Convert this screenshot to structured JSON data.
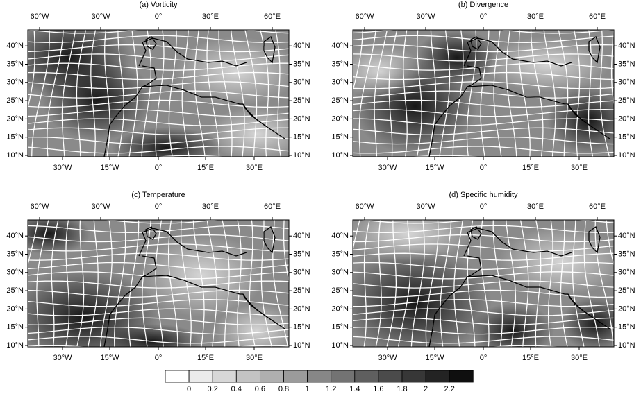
{
  "panels": [
    {
      "title": "(a) Vorticity"
    },
    {
      "title": "(b) Divergence"
    },
    {
      "title": "(c) Temperature"
    },
    {
      "title": "(d) Specific humidity"
    }
  ],
  "top_labels": [
    "60°W",
    "30°W",
    "0°",
    "30°E",
    "60°E"
  ],
  "bottom_labels": [
    "30°W",
    "15°W",
    "0°",
    "15°E",
    "30°E"
  ],
  "lat_labels": [
    "10°N",
    "15°N",
    "20°N",
    "25°N",
    "30°N",
    "35°N",
    "40°N"
  ],
  "colorbar": {
    "levels": [
      0,
      0.2,
      0.4,
      0.6,
      0.8,
      1,
      1.2,
      1.4,
      1.6,
      1.8,
      2,
      2.2
    ],
    "colors": [
      "#ffffff",
      "#ebebeb",
      "#d7d7d7",
      "#c3c3c3",
      "#afafaf",
      "#9b9b9b",
      "#878787",
      "#737373",
      "#5f5f5f",
      "#4b4b4b",
      "#373737",
      "#232323",
      "#0f0f0f"
    ]
  }
}
